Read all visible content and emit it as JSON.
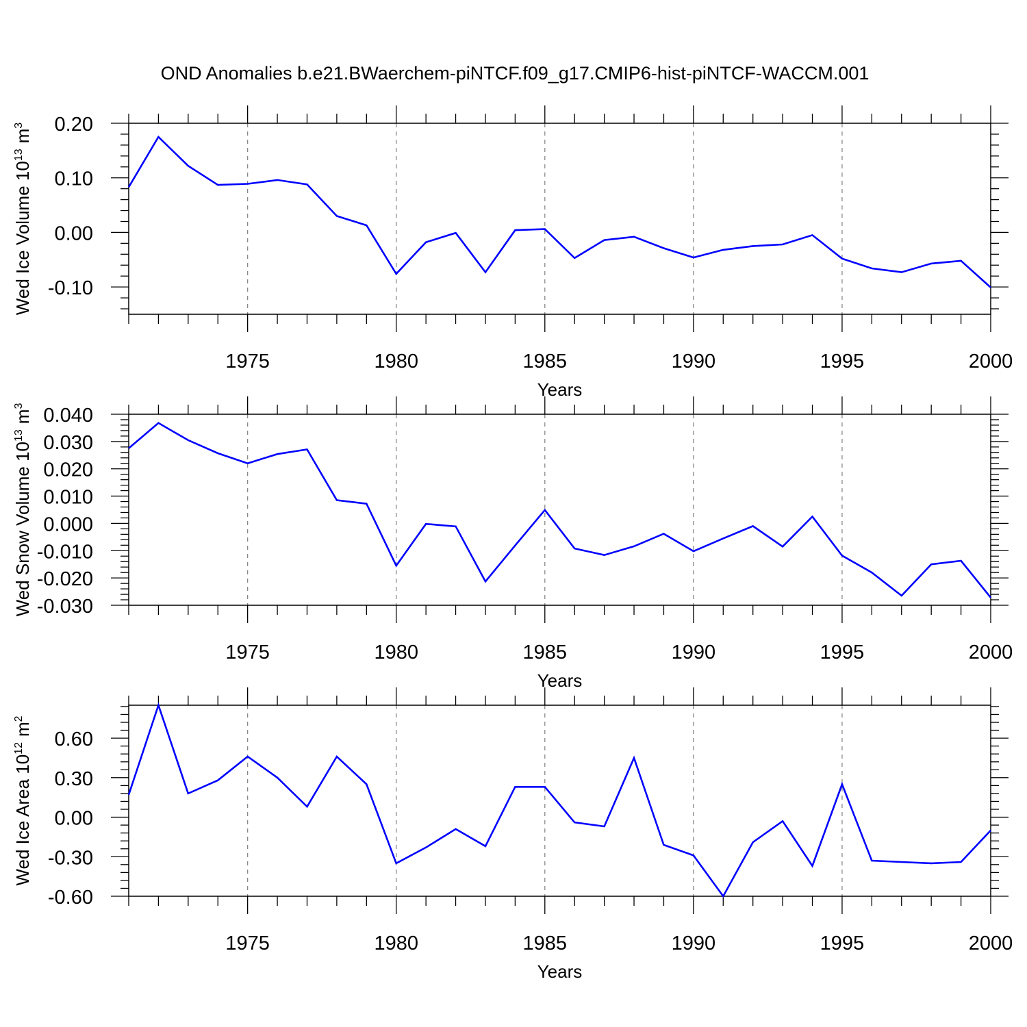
{
  "figure": {
    "title": "OND Anomalies b.e21.BWaerchem-piNTCF.f09_g17.CMIP6-hist-piNTCF-WACCM.001",
    "line_color": "#0000ff"
  },
  "chart_data": [
    {
      "type": "line",
      "title": "",
      "ylabel_text": "Wed Ice Volume 10",
      "ylabel_exp": "13",
      "ylabel_unit": "m",
      "ylabel_unit_exp": "3",
      "xlabel": "Years",
      "x": [
        1971,
        1972,
        1973,
        1974,
        1975,
        1976,
        1977,
        1978,
        1979,
        1980,
        1981,
        1982,
        1983,
        1984,
        1985,
        1986,
        1987,
        1988,
        1989,
        1990,
        1991,
        1992,
        1993,
        1994,
        1995,
        1996,
        1997,
        1998,
        1999,
        2000
      ],
      "series": [
        {
          "name": "Wed Ice Volume",
          "values": [
            0.083,
            0.175,
            0.122,
            0.087,
            0.089,
            0.096,
            0.088,
            0.03,
            0.013,
            -0.076,
            -0.018,
            -0.001,
            -0.073,
            0.004,
            0.006,
            -0.047,
            -0.014,
            -0.008,
            -0.029,
            -0.046,
            -0.032,
            -0.025,
            -0.022,
            -0.005,
            -0.048,
            -0.066,
            -0.073,
            -0.057,
            -0.052,
            -0.101
          ]
        }
      ],
      "xlim": [
        1971,
        2000
      ],
      "ylim": [
        -0.15,
        0.2
      ],
      "yticks": [
        0.2,
        0.1,
        0.0,
        -0.1
      ],
      "ytick_labels": [
        "0.20",
        "0.10",
        "0.00",
        "-0.10"
      ],
      "xticks": [
        1975,
        1980,
        1985,
        1990,
        1995,
        2000
      ],
      "xtick_labels": [
        "1975",
        "1980",
        "1985",
        "1990",
        "1995",
        "2000"
      ]
    },
    {
      "type": "line",
      "title": "",
      "ylabel_text": "Wed Snow Volume 10",
      "ylabel_exp": "13",
      "ylabel_unit": "m",
      "ylabel_unit_exp": "3",
      "xlabel": "Years",
      "x": [
        1971,
        1972,
        1973,
        1974,
        1975,
        1976,
        1977,
        1978,
        1979,
        1980,
        1981,
        1982,
        1983,
        1984,
        1985,
        1986,
        1987,
        1988,
        1989,
        1990,
        1991,
        1992,
        1993,
        1994,
        1995,
        1996,
        1997,
        1998,
        1999,
        2000
      ],
      "series": [
        {
          "name": "Wed Snow Volume",
          "values": [
            0.0275,
            0.0368,
            0.0305,
            0.0257,
            0.022,
            0.0254,
            0.0271,
            0.0085,
            0.0072,
            -0.0155,
            -0.0002,
            -0.0011,
            -0.0213,
            -0.0081,
            0.0049,
            -0.0092,
            -0.0116,
            -0.0084,
            -0.0038,
            -0.0102,
            -0.0055,
            -0.001,
            -0.0085,
            0.0025,
            -0.0118,
            -0.018,
            -0.0265,
            -0.015,
            -0.0137,
            -0.0272
          ]
        }
      ],
      "xlim": [
        1971,
        2000
      ],
      "ylim": [
        -0.03,
        0.04
      ],
      "yticks": [
        0.04,
        0.03,
        0.02,
        0.01,
        0.0,
        -0.01,
        -0.02,
        -0.03
      ],
      "ytick_labels": [
        "0.040",
        "0.030",
        "0.020",
        "0.010",
        "0.000",
        "-0.010",
        "-0.020",
        "-0.030"
      ],
      "xticks": [
        1975,
        1980,
        1985,
        1990,
        1995,
        2000
      ],
      "xtick_labels": [
        "1975",
        "1980",
        "1985",
        "1990",
        "1995",
        "2000"
      ]
    },
    {
      "type": "line",
      "title": "",
      "ylabel_text": "Wed Ice Area 10",
      "ylabel_exp": "12",
      "ylabel_unit": "m",
      "ylabel_unit_exp": "2",
      "xlabel": "Years",
      "x": [
        1971,
        1972,
        1973,
        1974,
        1975,
        1976,
        1977,
        1978,
        1979,
        1980,
        1981,
        1982,
        1983,
        1984,
        1985,
        1986,
        1987,
        1988,
        1989,
        1990,
        1991,
        1992,
        1993,
        1994,
        1995,
        1996,
        1997,
        1998,
        1999,
        2000
      ],
      "series": [
        {
          "name": "Wed Ice Area",
          "values": [
            0.17,
            0.85,
            0.18,
            0.28,
            0.46,
            0.3,
            0.08,
            0.46,
            0.25,
            -0.35,
            -0.23,
            -0.09,
            -0.22,
            0.23,
            0.23,
            -0.04,
            -0.07,
            0.45,
            -0.21,
            -0.29,
            -0.6,
            -0.19,
            -0.03,
            -0.37,
            0.25,
            -0.33,
            -0.34,
            -0.35,
            -0.34,
            -0.1
          ]
        }
      ],
      "xlim": [
        1971,
        2000
      ],
      "ylim": [
        -0.6,
        0.85
      ],
      "yticks": [
        0.6,
        0.3,
        0.0,
        -0.3,
        -0.6
      ],
      "ytick_labels": [
        "0.60",
        "0.30",
        "0.00",
        "-0.30",
        "-0.60"
      ],
      "xticks": [
        1975,
        1980,
        1985,
        1990,
        1995,
        2000
      ],
      "xtick_labels": [
        "1975",
        "1980",
        "1985",
        "1990",
        "1995",
        "2000"
      ]
    }
  ]
}
